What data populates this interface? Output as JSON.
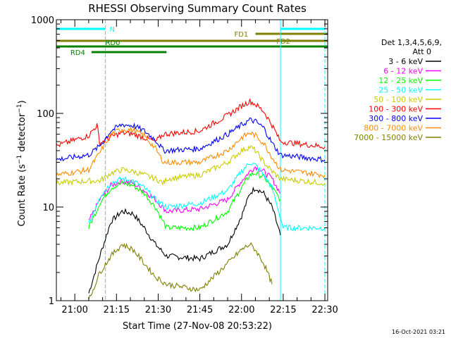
{
  "chart_data": {
    "type": "line",
    "title": "RHESSI Observing Summary Count Rates",
    "xlabel": "Start Time (27-Nov-08 20:53:22)",
    "ylabel_main": "Count Rate (s",
    "ylabel_exp1": "−1",
    "ylabel_mid": " detector",
    "ylabel_exp2": "−1",
    "ylabel_end": ")",
    "y_scale": "log",
    "ylim": [
      1,
      1000
    ],
    "xlim": [
      "20:53:22",
      "22:31:00"
    ],
    "x_ticks": [
      "21:00",
      "21:15",
      "21:30",
      "21:45",
      "22:00",
      "22:15",
      "22:30"
    ],
    "y_ticks": [
      "1",
      "10",
      "100",
      "1000"
    ],
    "legend_header": [
      "Det 1,3,4,5,6,9,",
      "Att 0"
    ],
    "legend_position": "right",
    "series": [
      {
        "name": "3 - 6 keV",
        "color": "#000000",
        "values": [
          [
            "21:05",
            1.2
          ],
          [
            "21:09",
            3.0
          ],
          [
            "21:13",
            7.0
          ],
          [
            "21:17",
            9.0
          ],
          [
            "21:21",
            8.5
          ],
          [
            "21:25",
            6.0
          ],
          [
            "21:29",
            4.0
          ],
          [
            "21:33",
            3.0
          ],
          [
            "21:45",
            2.8
          ],
          [
            "21:55",
            4.0
          ],
          [
            "22:00",
            8.0
          ],
          [
            "22:03",
            14.0
          ],
          [
            "22:05",
            16.0
          ],
          [
            "22:08",
            14.0
          ],
          [
            "22:11",
            10.0
          ],
          [
            "22:14",
            5.0
          ]
        ]
      },
      {
        "name": "6 - 12 keV",
        "color": "#ff00ff",
        "values": [
          [
            "21:05",
            7.0
          ],
          [
            "21:09",
            12.0
          ],
          [
            "21:13",
            17.0
          ],
          [
            "21:17",
            19.0
          ],
          [
            "21:21",
            18.0
          ],
          [
            "21:25",
            15.0
          ],
          [
            "21:29",
            12.0
          ],
          [
            "21:33",
            9.0
          ],
          [
            "21:45",
            9.5
          ],
          [
            "21:55",
            12.0
          ],
          [
            "22:00",
            19.0
          ],
          [
            "22:03",
            24.0
          ],
          [
            "22:05",
            27.0
          ],
          [
            "22:08",
            24.0
          ],
          [
            "22:11",
            20.0
          ],
          [
            "22:14",
            14.0
          ]
        ]
      },
      {
        "name": "12 - 25 keV",
        "color": "#00ff00",
        "values": [
          [
            "21:05",
            6.0
          ],
          [
            "21:09",
            11.0
          ],
          [
            "21:13",
            16.0
          ],
          [
            "21:17",
            18.0
          ],
          [
            "21:21",
            17.0
          ],
          [
            "21:25",
            14.0
          ],
          [
            "21:29",
            10.0
          ],
          [
            "21:33",
            6.0
          ],
          [
            "21:45",
            6.0
          ],
          [
            "21:55",
            9.0
          ],
          [
            "22:00",
            16.0
          ],
          [
            "22:03",
            22.0
          ],
          [
            "22:05",
            23.0
          ],
          [
            "22:08",
            21.0
          ],
          [
            "22:11",
            16.0
          ],
          [
            "22:14",
            12.0
          ]
        ]
      },
      {
        "name": "25 - 50 keV",
        "color": "#00ffff",
        "values": [
          [
            "21:05",
            6.5
          ],
          [
            "21:09",
            13.0
          ],
          [
            "21:13",
            18.0
          ],
          [
            "21:17",
            20.0
          ],
          [
            "21:21",
            19.0
          ],
          [
            "21:25",
            16.0
          ],
          [
            "21:29",
            12.0
          ],
          [
            "21:33",
            10.0
          ],
          [
            "21:45",
            11.0
          ],
          [
            "21:55",
            15.0
          ],
          [
            "22:00",
            24.0
          ],
          [
            "22:03",
            30.0
          ],
          [
            "22:05",
            28.0
          ],
          [
            "22:08",
            22.0
          ],
          [
            "22:11",
            16.0
          ],
          [
            "22:15",
            6.0
          ],
          [
            "22:30",
            6.0
          ]
        ]
      },
      {
        "name": "50 - 100 keV",
        "color": "#cccc00",
        "values": [
          [
            "20:53:22",
            18.0
          ],
          [
            "21:05",
            19.0
          ],
          [
            "21:09",
            19.0
          ],
          [
            "21:13",
            23.0
          ],
          [
            "21:17",
            25.0
          ],
          [
            "21:21",
            24.0
          ],
          [
            "21:25",
            22.0
          ],
          [
            "21:29",
            20.0
          ],
          [
            "21:32",
            18.0
          ],
          [
            "21:33",
            20.0
          ],
          [
            "21:45",
            22.0
          ],
          [
            "21:55",
            30.0
          ],
          [
            "22:00",
            40.0
          ],
          [
            "22:03",
            44.0
          ],
          [
            "22:05",
            40.0
          ],
          [
            "22:08",
            30.0
          ],
          [
            "22:11",
            24.0
          ],
          [
            "22:14",
            20.0
          ],
          [
            "22:30",
            18.0
          ]
        ]
      },
      {
        "name": "100 - 300 keV",
        "color": "#ff0000",
        "values": [
          [
            "20:53:22",
            45.0
          ],
          [
            "21:05",
            58.0
          ],
          [
            "21:08",
            75.0
          ],
          [
            "21:09",
            48.0
          ],
          [
            "21:13",
            56.0
          ],
          [
            "21:17",
            62.0
          ],
          [
            "21:21",
            60.0
          ],
          [
            "21:25",
            55.0
          ],
          [
            "21:29",
            50.0
          ],
          [
            "21:32",
            60.0
          ],
          [
            "21:45",
            65.0
          ],
          [
            "21:55",
            95.0
          ],
          [
            "22:00",
            120.0
          ],
          [
            "22:03",
            135.0
          ],
          [
            "22:05",
            125.0
          ],
          [
            "22:08",
            105.0
          ],
          [
            "22:11",
            75.0
          ],
          [
            "22:14",
            50.0
          ],
          [
            "22:30",
            44.0
          ]
        ]
      },
      {
        "name": "300 - 800 keV",
        "color": "#0000ff",
        "values": [
          [
            "20:53:22",
            32.0
          ],
          [
            "21:05",
            36.0
          ],
          [
            "21:09",
            45.0
          ],
          [
            "21:13",
            65.0
          ],
          [
            "21:17",
            76.0
          ],
          [
            "21:21",
            74.0
          ],
          [
            "21:25",
            65.0
          ],
          [
            "21:29",
            52.0
          ],
          [
            "21:32",
            40.0
          ],
          [
            "21:45",
            42.0
          ],
          [
            "21:55",
            60.0
          ],
          [
            "22:00",
            75.0
          ],
          [
            "22:03",
            85.0
          ],
          [
            "22:05",
            82.0
          ],
          [
            "22:08",
            70.0
          ],
          [
            "22:11",
            48.0
          ],
          [
            "22:14",
            36.0
          ],
          [
            "22:30",
            32.0
          ]
        ]
      },
      {
        "name": "800 - 7000 keV",
        "color": "#ff8c00",
        "values": [
          [
            "20:53:22",
            22.0
          ],
          [
            "21:05",
            25.0
          ],
          [
            "21:09",
            38.0
          ],
          [
            "21:13",
            60.0
          ],
          [
            "21:17",
            68.0
          ],
          [
            "21:21",
            66.0
          ],
          [
            "21:25",
            58.0
          ],
          [
            "21:29",
            42.0
          ],
          [
            "21:32",
            30.0
          ],
          [
            "21:45",
            30.0
          ],
          [
            "21:55",
            40.0
          ],
          [
            "22:00",
            55.0
          ],
          [
            "22:03",
            62.0
          ],
          [
            "22:05",
            58.0
          ],
          [
            "22:08",
            48.0
          ],
          [
            "22:11",
            34.0
          ],
          [
            "22:14",
            25.0
          ],
          [
            "22:30",
            22.0
          ]
        ]
      },
      {
        "name": "7000 - 15000 keV",
        "color": "#808000",
        "values": [
          [
            "21:05",
            1.0
          ],
          [
            "21:09",
            2.0
          ],
          [
            "21:13",
            3.0
          ],
          [
            "21:17",
            4.0
          ],
          [
            "21:21",
            3.5
          ],
          [
            "21:25",
            2.5
          ],
          [
            "21:29",
            1.8
          ],
          [
            "21:33",
            1.5
          ],
          [
            "21:45",
            1.3
          ],
          [
            "21:55",
            2.5
          ],
          [
            "22:00",
            3.5
          ],
          [
            "22:03",
            4.0
          ],
          [
            "22:05",
            3.5
          ],
          [
            "22:08",
            2.5
          ],
          [
            "22:11",
            1.5
          ]
        ]
      }
    ],
    "flag_bars": [
      {
        "label": "N",
        "color": "#00ffff",
        "segments": [
          [
            "20:53:22",
            "21:11"
          ],
          [
            "22:14",
            "22:30"
          ]
        ]
      },
      {
        "label": "FD1",
        "color": "#808000",
        "segments": [
          [
            "22:05",
            "22:31"
          ]
        ]
      },
      {
        "label": "FD2",
        "color": "#808000",
        "segments": [
          [
            "20:53:22",
            "22:31"
          ]
        ]
      },
      {
        "label": "RD0",
        "color": "#008000",
        "segments": [
          [
            "20:53:22",
            "22:31"
          ]
        ]
      },
      {
        "label": "RD4",
        "color": "#008000",
        "segments": [
          [
            "21:06",
            "21:33"
          ]
        ]
      }
    ],
    "vertical_markers": [
      {
        "x": "20:53:22",
        "color": "#00ffff",
        "style": "solid"
      },
      {
        "x": "21:11",
        "color": "#00ffff",
        "style": "dashed"
      },
      {
        "x": "22:14",
        "color": "#00ffff",
        "style": "solid"
      },
      {
        "x": "22:30",
        "color": "#00ffff",
        "style": "dashed"
      }
    ],
    "footer_timestamp": "16-Oct-2021 03:21"
  }
}
